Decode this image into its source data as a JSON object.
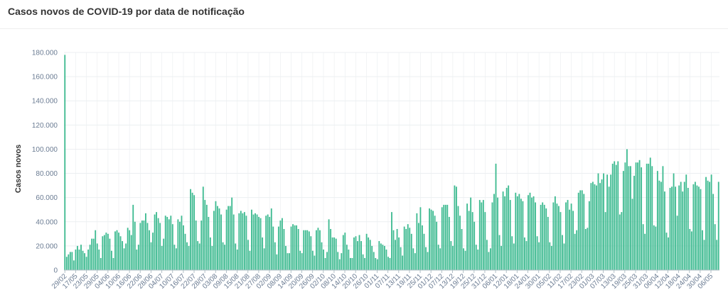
{
  "title": "Casos novos de COVID-19 por data de notificação",
  "colors": {
    "bar": "#3dba90",
    "grid": "#eceff1",
    "axis": "#b0bec5",
    "tick_text": "#6b7c93",
    "label_text": "#333333"
  },
  "chart_data": {
    "type": "bar",
    "title": "Casos novos de COVID-19 por data de notificação",
    "xlabel": "",
    "ylabel": "Casos novos",
    "ylim": [
      0,
      180000
    ],
    "yticks": [
      "0",
      "20.000",
      "40.000",
      "60.000",
      "80.000",
      "100.000",
      "120.000",
      "140.000",
      "160.000",
      "180.000"
    ],
    "xtick_labels": [
      "29/02",
      "17/05",
      "23/05",
      "29/05",
      "04/06",
      "10/06",
      "16/06",
      "22/06",
      "28/06",
      "04/07",
      "10/07",
      "16/07",
      "22/07",
      "28/07",
      "03/08",
      "09/08",
      "15/08",
      "21/08",
      "27/08",
      "02/09",
      "08/09",
      "14/09",
      "20/09",
      "26/09",
      "02/10",
      "08/10",
      "14/10",
      "20/10",
      "26/10",
      "01/11",
      "07/11",
      "13/11",
      "19/11",
      "25/11",
      "01/12",
      "07/12",
      "13/12",
      "19/12",
      "25/12",
      "31/12",
      "06/01",
      "12/01",
      "18/01",
      "24/01",
      "30/01",
      "05/02",
      "11/02",
      "17/02",
      "23/02",
      "01/03",
      "07/03",
      "13/03",
      "19/03",
      "25/03",
      "31/03",
      "06/04",
      "12/04",
      "18/04",
      "24/04",
      "30/04",
      "06/05"
    ],
    "grid": true,
    "legend": "none",
    "values": [
      178000,
      11000,
      13000,
      15000,
      15000,
      8000,
      17000,
      20000,
      17000,
      21000,
      16000,
      14000,
      11000,
      17000,
      21000,
      26000,
      26000,
      33000,
      22000,
      17000,
      10000,
      28000,
      29000,
      31000,
      30000,
      26000,
      16000,
      10000,
      32000,
      33000,
      31000,
      28000,
      24000,
      18000,
      22000,
      35000,
      33000,
      29000,
      54000,
      40000,
      17000,
      21000,
      39000,
      41000,
      41000,
      47000,
      39000,
      33000,
      23000,
      31000,
      46000,
      48000,
      43000,
      39000,
      20000,
      26000,
      45000,
      44000,
      42000,
      45000,
      38000,
      21000,
      18000,
      42000,
      40000,
      45000,
      37000,
      30000,
      23000,
      20000,
      67000,
      64000,
      62000,
      41000,
      24000,
      22000,
      41000,
      69000,
      58000,
      54000,
      44000,
      27000,
      20000,
      49000,
      57000,
      53000,
      51000,
      46000,
      23000,
      21000,
      50000,
      53000,
      53000,
      60000,
      46000,
      22000,
      17000,
      47000,
      49000,
      47000,
      48000,
      45000,
      25000,
      16000,
      50000,
      46000,
      47000,
      46000,
      44000,
      43000,
      27000,
      18000,
      45000,
      46000,
      44000,
      51000,
      36000,
      23000,
      13000,
      36000,
      41000,
      43000,
      34000,
      20000,
      14000,
      14000,
      36000,
      38000,
      37000,
      37000,
      34000,
      16000,
      14000,
      33000,
      33000,
      33000,
      32000,
      28000,
      16000,
      12000,
      33000,
      35000,
      33000,
      23000,
      17000,
      10000,
      15000,
      42000,
      34000,
      27000,
      27000,
      26000,
      15000,
      9000,
      14000,
      29000,
      31000,
      21000,
      17000,
      10000,
      10000,
      27000,
      28000,
      24000,
      29000,
      24000,
      13000,
      10000,
      30000,
      27000,
      25000,
      20000,
      15000,
      10000,
      9000,
      24000,
      22000,
      21000,
      20000,
      17000,
      11000,
      10000,
      48000,
      33000,
      25000,
      34000,
      27000,
      19000,
      12000,
      36000,
      34000,
      38000,
      35000,
      30000,
      18000,
      14000,
      47000,
      39000,
      52000,
      37000,
      30000,
      19000,
      15000,
      51000,
      50000,
      49000,
      45000,
      40000,
      21000,
      18000,
      52000,
      54000,
      54000,
      54000,
      44000,
      24000,
      20000,
      70000,
      69000,
      53000,
      45000,
      34000,
      18000,
      16000,
      55000,
      49000,
      60000,
      48000,
      40000,
      21000,
      17000,
      58000,
      56000,
      58000,
      48000,
      25000,
      15000,
      18000,
      56000,
      63000,
      88000,
      60000,
      29000,
      20000,
      65000,
      61000,
      68000,
      70000,
      58000,
      28000,
      22000,
      64000,
      61000,
      63000,
      59000,
      57000,
      27000,
      24000,
      62000,
      64000,
      60000,
      61000,
      56000,
      28000,
      23000,
      54000,
      56000,
      54000,
      51000,
      44000,
      23000,
      20000,
      56000,
      61000,
      55000,
      53000,
      48000,
      29000,
      22000,
      56000,
      58000,
      50000,
      55000,
      49000,
      30000,
      33000,
      64000,
      66000,
      66000,
      63000,
      34000,
      35000,
      57000,
      72000,
      73000,
      71000,
      70000,
      80000,
      72000,
      75000,
      80000,
      48000,
      79000,
      69000,
      79000,
      88000,
      90000,
      87000,
      90000,
      46000,
      48000,
      82000,
      89000,
      100000,
      86000,
      86000,
      59000,
      78000,
      89000,
      89000,
      91000,
      85000,
      38000,
      30000,
      88000,
      88000,
      93000,
      86000,
      37000,
      36000,
      82000,
      74000,
      73000,
      86000,
      65000,
      31000,
      27000,
      68000,
      69000,
      80000,
      69000,
      45000,
      70000,
      73000,
      65000,
      73000,
      79000,
      68000,
      34000,
      32000,
      71000,
      73000,
      70000,
      69000,
      67000,
      33000,
      25000,
      77000,
      74000,
      73000,
      79000,
      63000,
      38000,
      25000,
      73000
    ]
  }
}
